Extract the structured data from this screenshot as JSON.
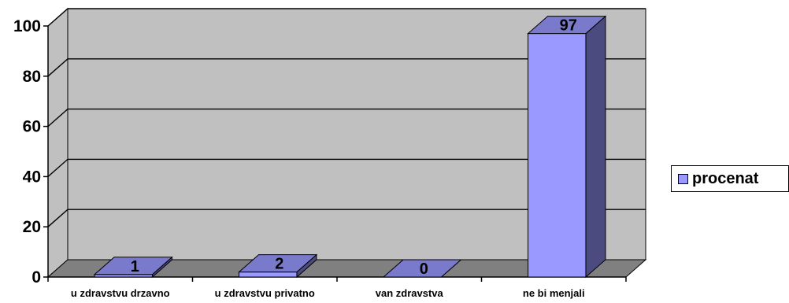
{
  "chart_data": {
    "type": "bar",
    "categories": [
      "u zdravstvu drzavno",
      "u zdravstvu privatno",
      "van zdravstva",
      "ne bi menjali"
    ],
    "series": [
      {
        "name": "procenat",
        "values": [
          1,
          2,
          0,
          97
        ]
      }
    ],
    "data_labels": [
      "1",
      "2",
      "0",
      "97"
    ],
    "yticks": [
      "0",
      "20",
      "40",
      "60",
      "80",
      "100"
    ],
    "ylim": [
      0,
      100
    ],
    "grid": true,
    "legend_position": "right",
    "colors": {
      "bar_front": "#9999ff",
      "bar_side": "#4b4b80",
      "bar_top": "#7a7acc",
      "wall": "#c0c0c0",
      "floor": "#808080"
    }
  }
}
